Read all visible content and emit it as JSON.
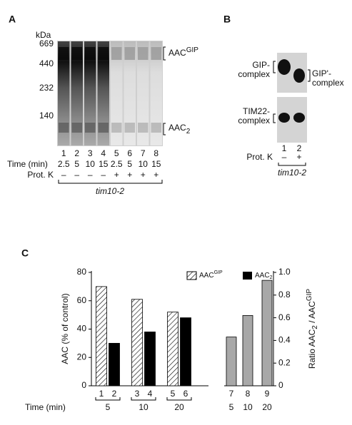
{
  "panel_a": {
    "label": "A",
    "unit": "kDa",
    "markers": [
      669,
      440,
      232,
      140
    ],
    "band_gip": {
      "base": "AAC",
      "sup": "GIP"
    },
    "band_aac2": {
      "base": "AAC",
      "sub": "2"
    },
    "lanes": [
      1,
      2,
      3,
      4,
      5,
      6,
      7,
      8
    ],
    "time_label": "Time (min)",
    "times": [
      2.5,
      5,
      10,
      15,
      2.5,
      5,
      10,
      15
    ],
    "protk_label": "Prot. K",
    "protk": [
      "–",
      "–",
      "–",
      "–",
      "+",
      "+",
      "+",
      "+"
    ],
    "strain": "tim10-2"
  },
  "panel_b": {
    "label": "B",
    "gip": [
      "GIP-",
      "complex"
    ],
    "gip_prime": [
      "GIP'-",
      "complex"
    ],
    "tim22": [
      "TIM22-",
      "complex"
    ],
    "lanes": [
      1,
      2
    ],
    "protk_label": "Prot. K",
    "protk": [
      "–",
      "+"
    ],
    "strain": "tim10-2"
  },
  "panel_c": {
    "label": "C",
    "x_label": "Time (min)"
  },
  "chart_data": [
    {
      "type": "bar",
      "y_label": "AAC (% of control)",
      "categories": [
        5,
        10,
        20
      ],
      "ylim": [
        0,
        80
      ],
      "yticks": [
        0,
        20,
        40,
        60,
        80
      ],
      "series": [
        {
          "name": {
            "base": "AAC",
            "sup": "GIP"
          },
          "color": "hatch",
          "lanes": [
            1,
            3,
            5
          ],
          "values": [
            70,
            61,
            52
          ]
        },
        {
          "name": {
            "base": "AAC",
            "sub": "2"
          },
          "color": "#000000",
          "lanes": [
            2,
            4,
            6
          ],
          "values": [
            30,
            38,
            48
          ]
        }
      ]
    },
    {
      "type": "bar",
      "y_label": [
        "Ratio AAC",
        "2",
        " / AAC",
        "GIP"
      ],
      "categories": [
        5,
        10,
        20
      ],
      "ylim": [
        0,
        1
      ],
      "yticks": [
        0,
        0.2,
        0.4,
        0.6,
        0.8,
        {
          "value": 1,
          "label": "1.0"
        }
      ],
      "series": [
        {
          "color": "#a8a8a8",
          "lanes": [
            7,
            8,
            9
          ],
          "values": [
            0.43,
            0.62,
            0.93
          ]
        }
      ]
    }
  ]
}
